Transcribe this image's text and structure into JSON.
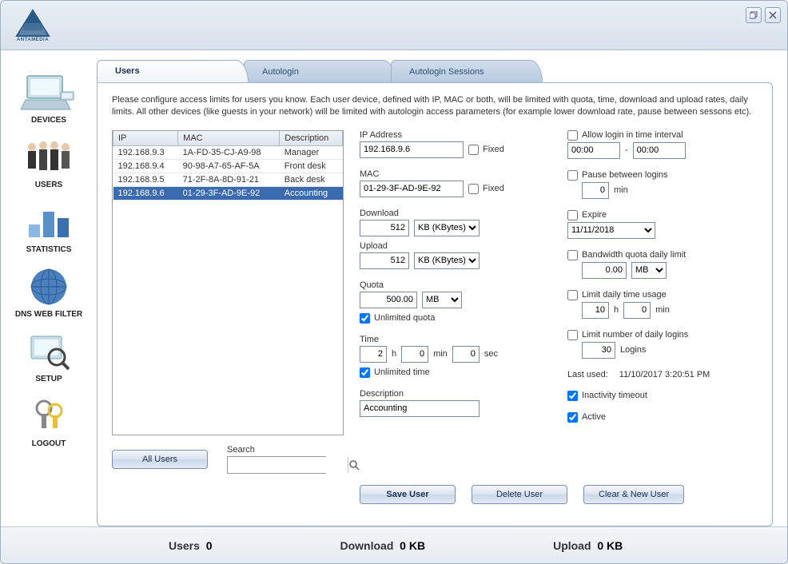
{
  "header": {
    "logoText": "ANTAMEDIA"
  },
  "tabs": [
    {
      "id": "users",
      "label": "Users",
      "active": true
    },
    {
      "id": "autologin",
      "label": "Autologin",
      "active": false
    },
    {
      "id": "sessions",
      "label": "Autologin Sessions",
      "active": false
    }
  ],
  "intro": "Please configure access limits for users you know. Each user device, defined with IP, MAC or both, will be limited with quota, time, download and upload rates, daily limits. All other devices (like guests in your network) will be limited with autologin access parameters (for example lower download rate, pause between sessons etc).",
  "sidebar": [
    {
      "id": "devices",
      "label": "DEVICES"
    },
    {
      "id": "users",
      "label": "USERS"
    },
    {
      "id": "statistics",
      "label": "STATISTICS"
    },
    {
      "id": "dnsfilter",
      "label": "DNS WEB FILTER"
    },
    {
      "id": "setup",
      "label": "SETUP"
    },
    {
      "id": "logout",
      "label": "LOGOUT"
    }
  ],
  "userTable": {
    "columns": [
      "IP",
      "MAC",
      "Description"
    ],
    "rows": [
      {
        "ip": "192.168.9.3",
        "mac": "1A-FD-35-CJ-A9-98",
        "desc": "Manager",
        "selected": false
      },
      {
        "ip": "192.168.9.4",
        "mac": "90-98-A7-65-AF-5A",
        "desc": "Front desk",
        "selected": false
      },
      {
        "ip": "192.168.9.5",
        "mac": "71-2F-8A-8D-91-21",
        "desc": "Back desk",
        "selected": false
      },
      {
        "ip": "192.168.9.6",
        "mac": "01-29-3F-AD-9E-92",
        "desc": "Accounting",
        "selected": true
      }
    ]
  },
  "allUsersBtn": "All Users",
  "searchLabel": "Search",
  "form": {
    "ipLabel": "IP Address",
    "ipValue": "192.168.9.6",
    "fixedLabel": "Fixed",
    "ipFixed": false,
    "macLabel": "MAC",
    "macValue": "01-29-3F-AD-9E-92",
    "macFixed": false,
    "downloadLabel": "Download",
    "downloadValue": "512",
    "downloadUnit": "KB (KBytes)",
    "uploadLabel": "Upload",
    "uploadValue": "512",
    "uploadUnit": "KB (KBytes)",
    "quotaLabel": "Quota",
    "quotaValue": "500.00",
    "quotaUnit": "MB",
    "unlimitedQuotaChecked": true,
    "unlimitedQuotaLabel": "Unlimited quota",
    "timeLabel": "Time",
    "timeH": "2",
    "timeM": "0",
    "timeS": "0",
    "hLabel": "h",
    "minLabel": "min",
    "secLabel": "sec",
    "unlimitedTimeChecked": true,
    "unlimitedTimeLabel": "Unlimited time",
    "descriptionLabel": "Description",
    "descriptionValue": "Accounting",
    "allowLoginLabel": "Allow login in time interval",
    "loginFrom": "00:00",
    "loginTo": "00:00",
    "dash": "-",
    "pauseLabel": "Pause between logins",
    "pauseValue": "0",
    "expireLabel": "Expire",
    "expireValue": "11/11/2018",
    "bwQuotaLabel": "Bandwidth quota daily limit",
    "bwQuotaValue": "0.00",
    "bwQuotaUnit": "MB",
    "limitDailyTimeLabel": "Limit daily time usage",
    "limitDailyTimeH": "10",
    "limitDailyTimeM": "0",
    "limitLoginsLabel": "Limit number of daily logins",
    "limitLoginsValue": "30",
    "loginsLabel": "Logins",
    "lastUsedLabel": "Last used:",
    "lastUsedValue": "11/10/2017 3:20:51 PM",
    "inactivityLabel": "Inactivity timeout",
    "inactivityChecked": true,
    "activeLabel": "Active",
    "activeChecked": true
  },
  "buttons": {
    "save": "Save User",
    "delete": "Delete User",
    "clear": "Clear & New User"
  },
  "status": {
    "usersLabel": "Users",
    "usersValue": "0",
    "downloadLabel": "Download",
    "downloadValue": "0 KB",
    "uploadLabel": "Upload",
    "uploadValue": "0 KB"
  }
}
